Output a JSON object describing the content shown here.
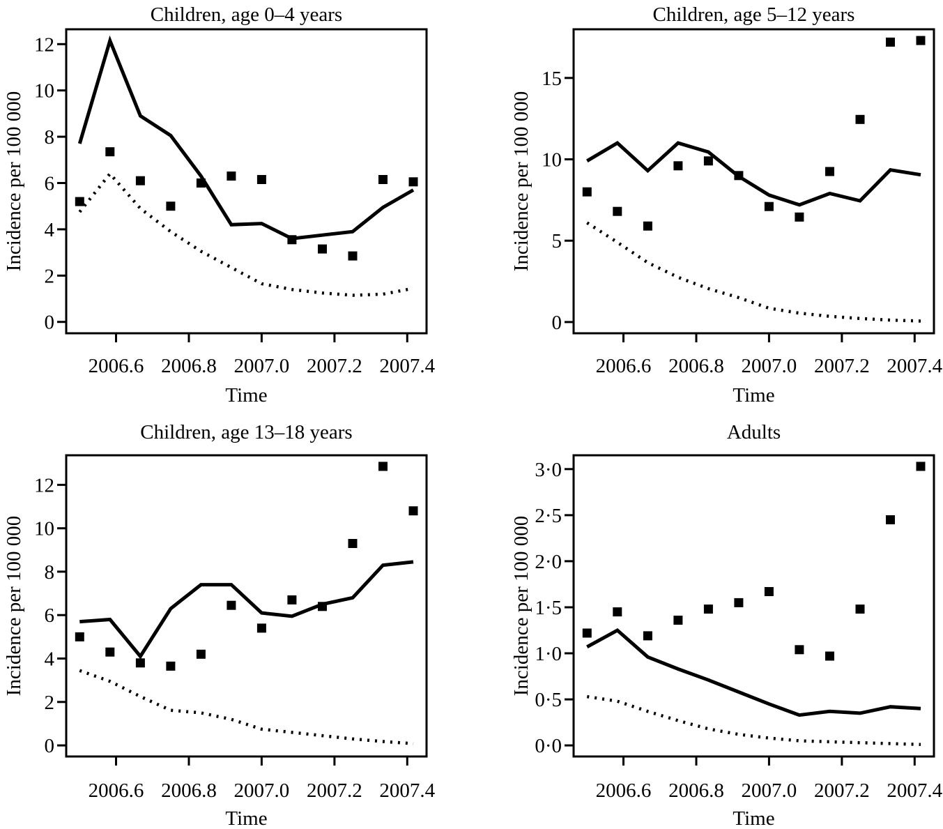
{
  "page": {
    "background_color": "#ffffff",
    "ink_color": "#000000",
    "layout": "2x2 panel figure of incidence time series"
  },
  "chart_data": [
    {
      "type": "line",
      "title": "Children, age 0–4 years",
      "xlabel": "Time",
      "ylabel": "Incidence per 100 000",
      "x": [
        2006.5,
        2006.5833,
        2006.6667,
        2006.75,
        2006.8333,
        2006.9167,
        2007.0,
        2007.0833,
        2007.1667,
        2007.25,
        2007.3333,
        2007.4167
      ],
      "series": [
        {
          "name": "fitted-solid-line",
          "style": "solid",
          "values": [
            7.7,
            12.15,
            8.9,
            8.05,
            6.3,
            4.2,
            4.25,
            3.6,
            3.75,
            3.9,
            4.95,
            5.7
          ]
        },
        {
          "name": "baseline-dotted-line",
          "style": "dotted",
          "values": [
            4.75,
            6.4,
            4.9,
            3.9,
            3.05,
            2.35,
            1.65,
            1.4,
            1.25,
            1.15,
            1.2,
            1.45
          ]
        },
        {
          "name": "observed-squares",
          "style": "square-points",
          "values": [
            5.2,
            7.35,
            6.1,
            5.0,
            6.0,
            6.3,
            6.15,
            3.55,
            3.15,
            2.85,
            6.15,
            6.05
          ]
        }
      ],
      "xlim": [
        2006.463,
        2007.453
      ],
      "ylim": [
        -0.49,
        12.64
      ],
      "xticks": {
        "values": [
          2006.6,
          2006.8,
          2007.0,
          2007.2,
          2007.4
        ],
        "labels": [
          "2006.6",
          "2006.8",
          "2007.0",
          "2007.2",
          "2007.4"
        ]
      },
      "yticks": {
        "values": [
          0,
          2,
          4,
          6,
          8,
          10,
          12
        ],
        "labels": [
          "0",
          "2",
          "4",
          "6",
          "8",
          "10",
          "12"
        ]
      },
      "grid": false,
      "legend": "none"
    },
    {
      "type": "line",
      "title": "Children, age 5–12 years",
      "xlabel": "Time",
      "ylabel": "Incidence per 100 000",
      "x": [
        2006.5,
        2006.5833,
        2006.6667,
        2006.75,
        2006.8333,
        2006.9167,
        2007.0,
        2007.0833,
        2007.1667,
        2007.25,
        2007.3333,
        2007.4167
      ],
      "series": [
        {
          "name": "fitted-solid-line",
          "style": "solid",
          "values": [
            9.9,
            11.0,
            9.3,
            11.0,
            10.45,
            8.95,
            7.8,
            7.2,
            7.9,
            7.45,
            9.35,
            9.05
          ]
        },
        {
          "name": "baseline-dotted-line",
          "style": "dotted",
          "values": [
            6.1,
            4.9,
            3.65,
            2.75,
            2.05,
            1.5,
            0.85,
            0.55,
            0.35,
            0.22,
            0.12,
            0.06
          ]
        },
        {
          "name": "observed-squares",
          "style": "square-points",
          "values": [
            8.0,
            6.8,
            5.9,
            9.6,
            9.9,
            9.0,
            7.1,
            6.45,
            9.25,
            12.45,
            17.2,
            17.3
          ]
        }
      ],
      "xlim": [
        2006.463,
        2007.453
      ],
      "ylim": [
        -0.69,
        17.99
      ],
      "xticks": {
        "values": [
          2006.6,
          2006.8,
          2007.0,
          2007.2,
          2007.4
        ],
        "labels": [
          "2006.6",
          "2006.8",
          "2007.0",
          "2007.2",
          "2007.4"
        ]
      },
      "yticks": {
        "values": [
          0,
          5,
          10,
          15
        ],
        "labels": [
          "0",
          "5",
          "10",
          "15"
        ]
      },
      "grid": false,
      "legend": "none"
    },
    {
      "type": "line",
      "title": "Children, age 13–18 years",
      "xlabel": "Time",
      "ylabel": "Incidence per 100 000",
      "x": [
        2006.5,
        2006.5833,
        2006.6667,
        2006.75,
        2006.8333,
        2006.9167,
        2007.0,
        2007.0833,
        2007.1667,
        2007.25,
        2007.3333,
        2007.4167
      ],
      "series": [
        {
          "name": "fitted-solid-line",
          "style": "solid",
          "values": [
            5.7,
            5.8,
            4.1,
            6.3,
            7.4,
            7.4,
            6.1,
            5.95,
            6.5,
            6.8,
            8.3,
            8.45
          ]
        },
        {
          "name": "baseline-dotted-line",
          "style": "dotted",
          "values": [
            3.45,
            2.95,
            2.25,
            1.62,
            1.5,
            1.2,
            0.75,
            0.6,
            0.45,
            0.3,
            0.18,
            0.08
          ]
        },
        {
          "name": "observed-squares",
          "style": "square-points",
          "values": [
            5.0,
            4.3,
            3.8,
            3.65,
            4.2,
            6.45,
            5.4,
            6.7,
            6.4,
            9.3,
            12.85,
            10.8
          ]
        }
      ],
      "xlim": [
        2006.463,
        2007.453
      ],
      "ylim": [
        -0.51,
        13.36
      ],
      "xticks": {
        "values": [
          2006.6,
          2006.8,
          2007.0,
          2007.2,
          2007.4
        ],
        "labels": [
          "2006.6",
          "2006.8",
          "2007.0",
          "2007.2",
          "2007.4"
        ]
      },
      "yticks": {
        "values": [
          0,
          2,
          4,
          6,
          8,
          10,
          12
        ],
        "labels": [
          "0",
          "2",
          "4",
          "6",
          "8",
          "10",
          "12"
        ]
      },
      "grid": false,
      "legend": "none"
    },
    {
      "type": "line",
      "title": "Adults",
      "xlabel": "Time",
      "ylabel": "Incidence per 100 000",
      "x": [
        2006.5,
        2006.5833,
        2006.6667,
        2006.75,
        2006.8333,
        2006.9167,
        2007.0,
        2007.0833,
        2007.1667,
        2007.25,
        2007.3333,
        2007.4167
      ],
      "series": [
        {
          "name": "fitted-solid-line",
          "style": "solid",
          "values": [
            1.07,
            1.25,
            0.96,
            0.83,
            0.71,
            0.58,
            0.45,
            0.33,
            0.37,
            0.35,
            0.42,
            0.4
          ]
        },
        {
          "name": "baseline-dotted-line",
          "style": "dotted",
          "values": [
            0.53,
            0.48,
            0.37,
            0.27,
            0.18,
            0.12,
            0.08,
            0.05,
            0.04,
            0.03,
            0.02,
            0.01
          ]
        },
        {
          "name": "observed-squares",
          "style": "square-points",
          "values": [
            1.22,
            1.45,
            1.19,
            1.36,
            1.48,
            1.55,
            1.67,
            1.04,
            0.97,
            1.48,
            2.45,
            3.03
          ]
        }
      ],
      "xlim": [
        2006.463,
        2007.453
      ],
      "ylim": [
        -0.12,
        3.15
      ],
      "xticks": {
        "values": [
          2006.6,
          2006.8,
          2007.0,
          2007.2,
          2007.4
        ],
        "labels": [
          "2006.6",
          "2006.8",
          "2007.0",
          "2007.2",
          "2007.4"
        ]
      },
      "yticks": {
        "values": [
          0.0,
          0.5,
          1.0,
          1.5,
          2.0,
          2.5,
          3.0
        ],
        "labels": [
          "0·0",
          "0·5",
          "1·0",
          "1·5",
          "2·0",
          "2·5",
          "3·0"
        ]
      },
      "grid": false,
      "legend": "none"
    }
  ]
}
